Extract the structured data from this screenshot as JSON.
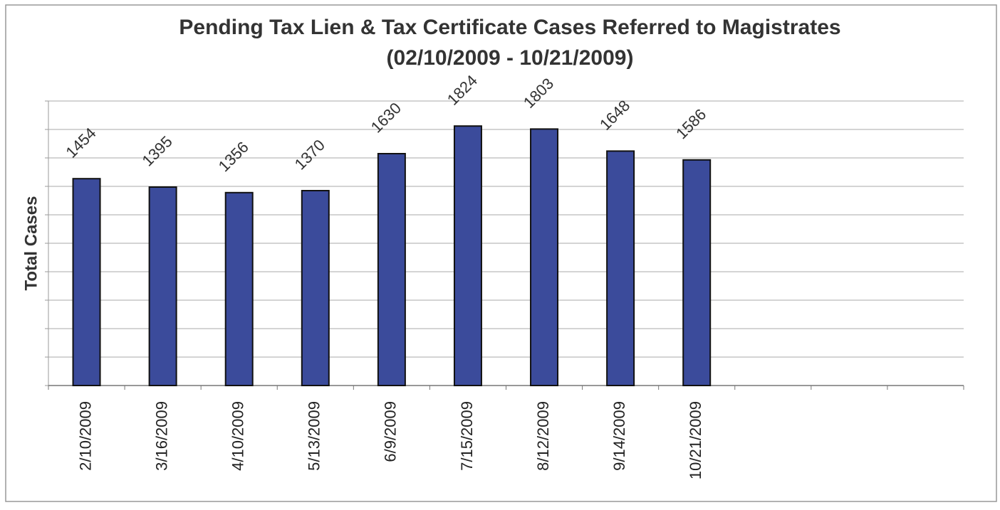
{
  "chart_data": {
    "type": "bar",
    "title": "Pending Tax Lien & Tax Certificate Cases Referred to Magistrates",
    "subtitle": "(02/10/2009 - 10/21/2009)",
    "y_label": "Total Cases",
    "categories": [
      "2/10/2009",
      "3/16/2009",
      "4/10/2009",
      "5/13/2009",
      "6/9/2009",
      "7/15/2009",
      "8/12/2009",
      "9/14/2009",
      "10/21/2009",
      null,
      null,
      null
    ],
    "values": [
      1454,
      1395,
      1356,
      1370,
      1630,
      1824,
      1803,
      1648,
      1586,
      null,
      null,
      null
    ],
    "color": "#3b4b9b",
    "ylim": [
      0,
      2000
    ],
    "yticks": [
      0,
      200,
      400,
      600,
      800,
      1000,
      1200,
      1400,
      1600,
      1800,
      2000
    ],
    "show_ytick_labels": false,
    "grid": true
  }
}
